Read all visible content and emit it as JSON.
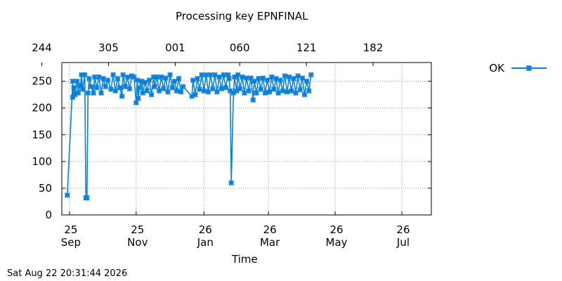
{
  "title": "Processing key EPNFINAL",
  "timestamp": "Sat Aug 22 20:31:44 2026",
  "chart_data": {
    "type": "line",
    "title": "Processing key EPNFINAL",
    "xlabel": "Time",
    "ylabel": "",
    "ylim": [
      0,
      285
    ],
    "xlim": [
      "2025-09-18",
      "2026-08-22"
    ],
    "grid": true,
    "legend_position": "top-right",
    "y_ticks": [
      0,
      50,
      100,
      150,
      200,
      250
    ],
    "x_ticks": [
      {
        "date": "2025-09-25",
        "label": [
          "25",
          "Sep"
        ]
      },
      {
        "date": "2025-11-25",
        "label": [
          "25",
          "Nov"
        ]
      },
      {
        "date": "2026-01-26",
        "label": [
          "26",
          "Jan"
        ]
      },
      {
        "date": "2026-03-26",
        "label": [
          "26",
          "Mar"
        ]
      },
      {
        "date": "2026-05-26",
        "label": [
          "26",
          "May"
        ]
      },
      {
        "date": "2026-07-26",
        "label": [
          "26",
          "Jul"
        ]
      }
    ],
    "x2_ticks": [
      {
        "date": "2025-09-01",
        "label": "244"
      },
      {
        "date": "2025-11-01",
        "label": "305"
      },
      {
        "date": "2026-01-01",
        "label": "001"
      },
      {
        "date": "2026-03-01",
        "label": "060"
      },
      {
        "date": "2026-05-01",
        "label": "121"
      },
      {
        "date": "2026-07-01",
        "label": "182"
      }
    ],
    "series": [
      {
        "name": "OK",
        "color": "#0a7fdc",
        "points": [
          {
            "x": "2025-09-23",
            "y": 37
          },
          {
            "x": "2025-09-28",
            "y": 250
          },
          {
            "x": "2025-09-28",
            "y": 220
          },
          {
            "x": "2025-09-29",
            "y": 238
          },
          {
            "x": "2025-09-30",
            "y": 225
          },
          {
            "x": "2025-10-02",
            "y": 250
          },
          {
            "x": "2025-10-03",
            "y": 228
          },
          {
            "x": "2025-10-05",
            "y": 242
          },
          {
            "x": "2025-10-06",
            "y": 262
          },
          {
            "x": "2025-10-07",
            "y": 235
          },
          {
            "x": "2025-10-09",
            "y": 262
          },
          {
            "x": "2025-10-10",
            "y": 32
          },
          {
            "x": "2025-10-11",
            "y": 32
          },
          {
            "x": "2025-10-12",
            "y": 228
          },
          {
            "x": "2025-10-13",
            "y": 255
          },
          {
            "x": "2025-10-15",
            "y": 240
          },
          {
            "x": "2025-10-17",
            "y": 228
          },
          {
            "x": "2025-10-18",
            "y": 258
          },
          {
            "x": "2025-10-20",
            "y": 238
          },
          {
            "x": "2025-10-22",
            "y": 258
          },
          {
            "x": "2025-10-24",
            "y": 228
          },
          {
            "x": "2025-10-26",
            "y": 255
          },
          {
            "x": "2025-10-28",
            "y": 240
          },
          {
            "x": "2025-10-30",
            "y": 252
          },
          {
            "x": "2025-11-02",
            "y": 235
          },
          {
            "x": "2025-11-04",
            "y": 262
          },
          {
            "x": "2025-11-06",
            "y": 232
          },
          {
            "x": "2025-11-08",
            "y": 255
          },
          {
            "x": "2025-11-10",
            "y": 238
          },
          {
            "x": "2025-11-12",
            "y": 222
          },
          {
            "x": "2025-11-13",
            "y": 262
          },
          {
            "x": "2025-11-15",
            "y": 240
          },
          {
            "x": "2025-11-17",
            "y": 258
          },
          {
            "x": "2025-11-19",
            "y": 236
          },
          {
            "x": "2025-11-21",
            "y": 260
          },
          {
            "x": "2025-11-23",
            "y": 258
          },
          {
            "x": "2025-11-25",
            "y": 210
          },
          {
            "x": "2025-11-26",
            "y": 252
          },
          {
            "x": "2025-11-27",
            "y": 218
          },
          {
            "x": "2025-11-28",
            "y": 238
          },
          {
            "x": "2025-11-30",
            "y": 250
          },
          {
            "x": "2025-12-01",
            "y": 228
          },
          {
            "x": "2025-12-03",
            "y": 248
          },
          {
            "x": "2025-12-05",
            "y": 232
          },
          {
            "x": "2025-12-07",
            "y": 252
          },
          {
            "x": "2025-12-09",
            "y": 225
          },
          {
            "x": "2025-12-11",
            "y": 258
          },
          {
            "x": "2025-12-12",
            "y": 240
          },
          {
            "x": "2025-12-14",
            "y": 258
          },
          {
            "x": "2025-12-16",
            "y": 232
          },
          {
            "x": "2025-12-18",
            "y": 258
          },
          {
            "x": "2025-12-20",
            "y": 236
          },
          {
            "x": "2025-12-22",
            "y": 256
          },
          {
            "x": "2025-12-24",
            "y": 230
          },
          {
            "x": "2025-12-26",
            "y": 262
          },
          {
            "x": "2025-12-28",
            "y": 238
          },
          {
            "x": "2025-12-30",
            "y": 250
          },
          {
            "x": "2026-01-01",
            "y": 232
          },
          {
            "x": "2026-01-03",
            "y": 255
          },
          {
            "x": "2026-01-05",
            "y": 230
          },
          {
            "x": "2026-01-07",
            "y": 240
          },
          {
            "x": "2026-01-15",
            "y": 222
          },
          {
            "x": "2026-01-16",
            "y": 252
          },
          {
            "x": "2026-01-18",
            "y": 225
          },
          {
            "x": "2026-01-20",
            "y": 255
          },
          {
            "x": "2026-01-22",
            "y": 235
          },
          {
            "x": "2026-01-24",
            "y": 262
          },
          {
            "x": "2026-01-26",
            "y": 232
          },
          {
            "x": "2026-01-28",
            "y": 262
          },
          {
            "x": "2026-01-30",
            "y": 230
          },
          {
            "x": "2026-02-01",
            "y": 262
          },
          {
            "x": "2026-02-03",
            "y": 236
          },
          {
            "x": "2026-02-05",
            "y": 262
          },
          {
            "x": "2026-02-07",
            "y": 230
          },
          {
            "x": "2026-02-09",
            "y": 258
          },
          {
            "x": "2026-02-11",
            "y": 236
          },
          {
            "x": "2026-02-13",
            "y": 262
          },
          {
            "x": "2026-02-15",
            "y": 238
          },
          {
            "x": "2026-02-17",
            "y": 262
          },
          {
            "x": "2026-02-18",
            "y": 255
          },
          {
            "x": "2026-02-19",
            "y": 232
          },
          {
            "x": "2026-02-20",
            "y": 60
          },
          {
            "x": "2026-02-22",
            "y": 228
          },
          {
            "x": "2026-02-23",
            "y": 258
          },
          {
            "x": "2026-02-25",
            "y": 232
          },
          {
            "x": "2026-02-26",
            "y": 262
          },
          {
            "x": "2026-02-28",
            "y": 236
          },
          {
            "x": "2026-03-02",
            "y": 258
          },
          {
            "x": "2026-03-04",
            "y": 228
          },
          {
            "x": "2026-03-06",
            "y": 256
          },
          {
            "x": "2026-03-08",
            "y": 232
          },
          {
            "x": "2026-03-10",
            "y": 256
          },
          {
            "x": "2026-03-12",
            "y": 215
          },
          {
            "x": "2026-03-13",
            "y": 250
          },
          {
            "x": "2026-03-15",
            "y": 228
          },
          {
            "x": "2026-03-17",
            "y": 255
          },
          {
            "x": "2026-03-19",
            "y": 235
          },
          {
            "x": "2026-03-21",
            "y": 256
          },
          {
            "x": "2026-03-23",
            "y": 228
          },
          {
            "x": "2026-03-25",
            "y": 252
          },
          {
            "x": "2026-03-27",
            "y": 230
          },
          {
            "x": "2026-03-29",
            "y": 258
          },
          {
            "x": "2026-03-31",
            "y": 235
          },
          {
            "x": "2026-04-02",
            "y": 255
          },
          {
            "x": "2026-04-04",
            "y": 228
          },
          {
            "x": "2026-04-06",
            "y": 252
          },
          {
            "x": "2026-04-08",
            "y": 232
          },
          {
            "x": "2026-04-10",
            "y": 260
          },
          {
            "x": "2026-04-12",
            "y": 230
          },
          {
            "x": "2026-04-14",
            "y": 258
          },
          {
            "x": "2026-04-16",
            "y": 232
          },
          {
            "x": "2026-04-18",
            "y": 255
          },
          {
            "x": "2026-04-20",
            "y": 228
          },
          {
            "x": "2026-04-22",
            "y": 260
          },
          {
            "x": "2026-04-24",
            "y": 234
          },
          {
            "x": "2026-04-26",
            "y": 256
          },
          {
            "x": "2026-04-28",
            "y": 225
          },
          {
            "x": "2026-04-30",
            "y": 250
          },
          {
            "x": "2026-05-02",
            "y": 232
          },
          {
            "x": "2026-05-04",
            "y": 262
          }
        ]
      }
    ]
  }
}
